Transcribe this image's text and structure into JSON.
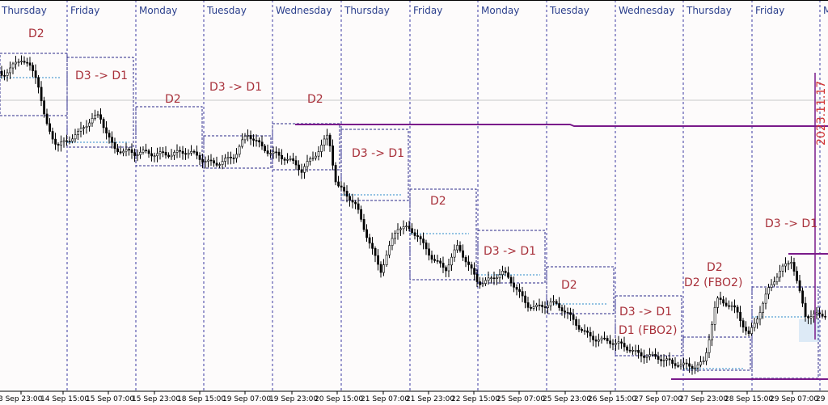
{
  "day_labels": [
    "Thursday",
    "Friday",
    "Monday",
    "Tuesday",
    "Wednesday",
    "Thursday",
    "Friday",
    "Monday",
    "Tuesday",
    "Wednesday",
    "Thursday",
    "Friday",
    "M"
  ],
  "time_labels": [
    "3 Sep 23:00",
    "14 Sep 15:00",
    "15 Sep 07:00",
    "15 Sep 23:00",
    "18 Sep 15:00",
    "19 Sep 07:00",
    "19 Sep 23:00",
    "20 Sep 15:00",
    "21 Sep 07:00",
    "21 Sep 23:00",
    "22 Sep 15:00",
    "25 Sep 07:00",
    "25 Sep 23:00",
    "26 Sep 15:00",
    "27 Sep 07:00",
    "27 Sep 23:00",
    "28 Sep 15:00",
    "29 Sep 07:00",
    "29 Se"
  ],
  "annotations": [
    "D2",
    "D3 -> D1",
    "D2",
    "D3 -> D1",
    "D2",
    "D3 -> D1",
    "D2",
    "D3 -> D1",
    "D2",
    "D3 -> D1",
    "D1 (FBO2)",
    "D2",
    "D2 (FBO2)",
    "D3 -> D1"
  ],
  "vertical_date": "2023.11.17"
}
